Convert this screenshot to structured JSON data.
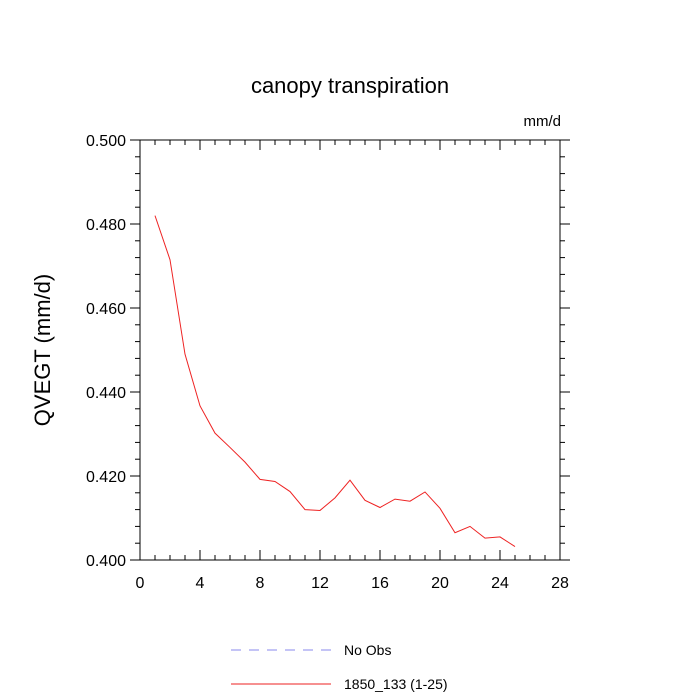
{
  "chart_data": {
    "type": "line",
    "title": "canopy transpiration",
    "units_label": "mm/d",
    "ylabel": "QVEGT  (mm/d)",
    "xlabel": "",
    "xlim": [
      0,
      28
    ],
    "ylim": [
      0.4,
      0.5
    ],
    "x_ticks": [
      0,
      4,
      8,
      12,
      16,
      20,
      24,
      28
    ],
    "x_tick_labels": [
      "0",
      "4",
      "8",
      "12",
      "16",
      "20",
      "24",
      "28"
    ],
    "y_ticks": [
      0.4,
      0.42,
      0.44,
      0.46,
      0.48,
      0.5
    ],
    "y_tick_labels": [
      "0.400",
      "0.420",
      "0.440",
      "0.460",
      "0.480",
      "0.500"
    ],
    "grid": false,
    "legend_position": "bottom",
    "series": [
      {
        "name": "No Obs",
        "color": "#8888ee",
        "style": "dashed",
        "x": [],
        "y": []
      },
      {
        "name": "1850_133 (1-25)",
        "color": "#ee2222",
        "style": "solid",
        "x": [
          1,
          2,
          3,
          4,
          5,
          6,
          7,
          8,
          9,
          10,
          11,
          12,
          13,
          14,
          15,
          16,
          17,
          18,
          19,
          20,
          21,
          22,
          23,
          24,
          25
        ],
        "y": [
          0.482,
          0.4715,
          0.449,
          0.4367,
          0.4302,
          0.4268,
          0.4233,
          0.4192,
          0.4187,
          0.4163,
          0.412,
          0.4118,
          0.4148,
          0.419,
          0.4142,
          0.4125,
          0.4145,
          0.414,
          0.4162,
          0.4123,
          0.4065,
          0.408,
          0.4052,
          0.4055,
          0.4032
        ]
      }
    ]
  }
}
